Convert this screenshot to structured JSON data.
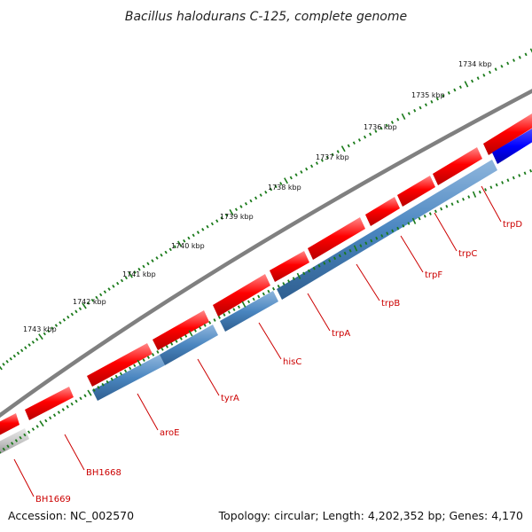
{
  "map": {
    "title": "Bacillus halodurans C-125, complete genome",
    "accession": "Accession: NC_002570",
    "summary": "Topology: circular; Length: 4,202,352 bp; Genes: 4,170"
  },
  "colors": {
    "forward_gene": "#e60000",
    "reverse_gene": "#4a86c0",
    "reverse_gene_highlight": "#0000ff",
    "unknown_gene": "#c8c8c8",
    "backbone": "#808080",
    "tick": "#1a7a1a",
    "label": "#cc0000"
  },
  "kbp_marks": [
    "1734 kbp",
    "1735 kbp",
    "1736 kbp",
    "1737 kbp",
    "1738 kbp",
    "1739 kbp",
    "1740 kbp",
    "1741 kbp",
    "1742 kbp",
    "1743 kbp"
  ],
  "gene_labels": [
    "trpD",
    "trpC",
    "trpF",
    "trpB",
    "trpA",
    "hisC",
    "tyrA",
    "aroE",
    "BH1668",
    "BH1669"
  ]
}
